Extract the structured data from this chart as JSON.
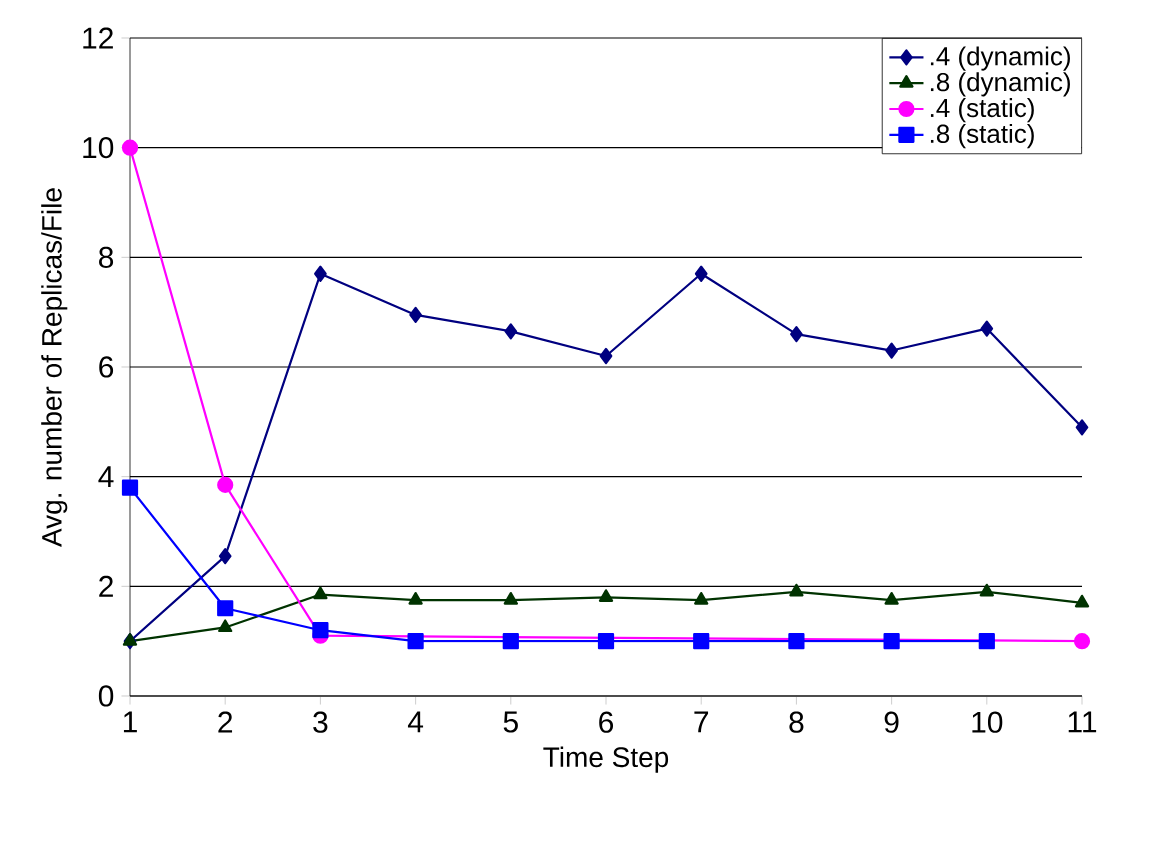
{
  "chart_data": {
    "type": "line",
    "xlabel": "Time Step",
    "ylabel": "Avg. number of Replicas/File",
    "x": [
      1,
      2,
      3,
      4,
      5,
      6,
      7,
      8,
      9,
      10,
      11
    ],
    "xlim": [
      1,
      11
    ],
    "xticks": [
      1,
      2,
      3,
      4,
      5,
      6,
      7,
      8,
      9,
      10,
      11
    ],
    "ylim": [
      0,
      12
    ],
    "yticks": [
      0,
      2,
      4,
      6,
      8,
      10,
      12
    ],
    "grid": "y",
    "legend": "top right",
    "series": [
      {
        "name": ".4 (dynamic)",
        "color": "#000080",
        "marker": "diamond",
        "values": [
          1,
          2.55,
          7.7,
          6.95,
          6.65,
          6.2,
          7.7,
          6.6,
          6.3,
          6.7,
          4.9
        ]
      },
      {
        "name": ".8 (dynamic)",
        "color": "#003300",
        "marker": "triangle",
        "values": [
          1,
          1.25,
          1.85,
          1.75,
          1.75,
          1.8,
          1.75,
          1.9,
          1.75,
          1.9,
          1.7
        ]
      },
      {
        "name": ".4 (static)",
        "color": "#ff00ff",
        "marker": "circle",
        "values": [
          10,
          3.85,
          1.1,
          null,
          null,
          null,
          null,
          null,
          null,
          null,
          1
        ]
      },
      {
        "name": ".8 (static)",
        "color": "#0000ff",
        "marker": "square",
        "values": [
          3.8,
          1.6,
          1.2,
          1,
          1,
          1,
          1,
          1,
          1,
          1,
          null
        ]
      }
    ]
  }
}
